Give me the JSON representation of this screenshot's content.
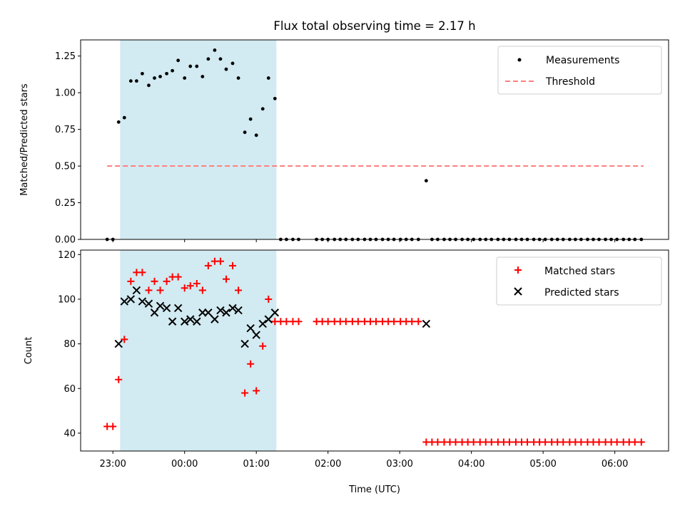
{
  "chart_data": {
    "type": "scatter",
    "title": "Flux total observing time = 2.17 h",
    "xlabel": "Time (UTC)",
    "x_unit": "hours since 00:00 UTC",
    "xlim": [
      -1.45,
      6.75
    ],
    "xticks": [
      -1,
      0,
      1,
      2,
      3,
      4,
      5,
      6
    ],
    "xtick_labels": [
      "23:00",
      "00:00",
      "01:00",
      "02:00",
      "03:00",
      "04:00",
      "05:00",
      "06:00"
    ],
    "highlight_span": [
      -0.9,
      1.28
    ],
    "colors": {
      "span": "#add8e6",
      "measurements": "#000000",
      "threshold": "#ff7f7f",
      "matched": "#ff0000",
      "predicted": "#000000"
    },
    "panels": [
      {
        "id": "ratio",
        "ylabel": "Matched/Predicted stars",
        "ylim": [
          0,
          1.36
        ],
        "yticks": [
          0,
          0.25,
          0.5,
          0.75,
          1.0,
          1.25
        ],
        "ytick_labels": [
          "0.00",
          "0.25",
          "0.50",
          "0.75",
          "1.00",
          "1.25"
        ],
        "legend": [
          {
            "label": "Measurements",
            "marker": "dot"
          },
          {
            "label": "Threshold",
            "marker": "dashed-line"
          }
        ],
        "threshold": {
          "y": 0.5,
          "x": [
            -1.08,
            6.4
          ]
        },
        "series": [
          {
            "name": "Measurements",
            "x": [
              -1.08,
              -1.0,
              -0.92,
              -0.84,
              -0.75,
              -0.67,
              -0.59,
              -0.5,
              -0.42,
              -0.34,
              -0.25,
              -0.17,
              -0.09,
              0.0,
              0.08,
              0.17,
              0.25,
              0.33,
              0.42,
              0.5,
              0.58,
              0.67,
              0.75,
              0.84,
              0.92,
              1.0,
              1.09,
              1.17,
              1.26,
              1.34,
              1.42,
              1.51,
              1.59,
              1.84,
              1.92,
              2.0,
              2.09,
              2.17,
              2.25,
              2.34,
              2.42,
              2.51,
              2.59,
              2.67,
              2.76,
              2.84,
              2.92,
              3.01,
              3.09,
              3.17,
              3.26,
              3.37,
              3.45,
              3.53,
              3.62,
              3.7,
              3.78,
              3.87,
              3.95,
              4.03,
              4.12,
              4.2,
              4.28,
              4.37,
              4.45,
              4.53,
              4.62,
              4.7,
              4.78,
              4.87,
              4.95,
              5.03,
              5.12,
              5.2,
              5.28,
              5.37,
              5.45,
              5.53,
              5.62,
              5.7,
              5.78,
              5.87,
              5.95,
              6.03,
              6.12,
              6.2,
              6.28,
              6.37
            ],
            "y": [
              0,
              0,
              0.8,
              0.83,
              1.08,
              1.08,
              1.13,
              1.05,
              1.1,
              1.11,
              1.13,
              1.15,
              1.22,
              1.1,
              1.18,
              1.18,
              1.11,
              1.23,
              1.29,
              1.23,
              1.16,
              1.2,
              1.1,
              0.73,
              0.82,
              0.71,
              0.89,
              1.1,
              0.96,
              0,
              0,
              0,
              0,
              0,
              0,
              0,
              0,
              0,
              0,
              0,
              0,
              0,
              0,
              0,
              0,
              0,
              0,
              0,
              0,
              0,
              0,
              0.4,
              0,
              0,
              0,
              0,
              0,
              0,
              0,
              0,
              0,
              0,
              0,
              0,
              0,
              0,
              0,
              0,
              0,
              0,
              0,
              0,
              0,
              0,
              0,
              0,
              0,
              0,
              0,
              0,
              0,
              0,
              0,
              0,
              0,
              0,
              0,
              0
            ]
          }
        ]
      },
      {
        "id": "count",
        "ylabel": "Count",
        "ylim": [
          32,
          122
        ],
        "yticks": [
          40,
          60,
          80,
          100,
          120
        ],
        "ytick_labels": [
          "40",
          "60",
          "80",
          "100",
          "120"
        ],
        "legend": [
          {
            "label": "Matched stars",
            "marker": "plus"
          },
          {
            "label": "Predicted stars",
            "marker": "x"
          }
        ],
        "series": [
          {
            "name": "Matched stars",
            "marker": "plus",
            "x": [
              -1.08,
              -1.0,
              -0.92,
              -0.84,
              -0.75,
              -0.67,
              -0.59,
              -0.5,
              -0.42,
              -0.34,
              -0.25,
              -0.17,
              -0.09,
              0.0,
              0.08,
              0.17,
              0.25,
              0.33,
              0.42,
              0.5,
              0.58,
              0.67,
              0.75,
              0.84,
              0.92,
              1.0,
              1.09,
              1.17,
              1.26,
              1.34,
              1.42,
              1.51,
              1.59,
              1.84,
              1.92,
              2.0,
              2.09,
              2.17,
              2.25,
              2.34,
              2.42,
              2.51,
              2.59,
              2.67,
              2.76,
              2.84,
              2.92,
              3.01,
              3.09,
              3.17,
              3.26,
              3.37,
              3.45,
              3.53,
              3.62,
              3.7,
              3.78,
              3.87,
              3.95,
              4.03,
              4.12,
              4.2,
              4.28,
              4.37,
              4.45,
              4.53,
              4.62,
              4.7,
              4.78,
              4.87,
              4.95,
              5.03,
              5.12,
              5.2,
              5.28,
              5.37,
              5.45,
              5.53,
              5.62,
              5.7,
              5.78,
              5.87,
              5.95,
              6.03,
              6.12,
              6.2,
              6.28,
              6.37
            ],
            "y": [
              43,
              43,
              64,
              82,
              108,
              112,
              112,
              104,
              108,
              104,
              108,
              110,
              110,
              105,
              106,
              107,
              104,
              115,
              117,
              117,
              109,
              115,
              104,
              58,
              71,
              59,
              79,
              100,
              90,
              90,
              90,
              90,
              90,
              90,
              90,
              90,
              90,
              90,
              90,
              90,
              90,
              90,
              90,
              90,
              90,
              90,
              90,
              90,
              90,
              90,
              90,
              36,
              36,
              36,
              36,
              36,
              36,
              36,
              36,
              36,
              36,
              36,
              36,
              36,
              36,
              36,
              36,
              36,
              36,
              36,
              36,
              36,
              36,
              36,
              36,
              36,
              36,
              36,
              36,
              36,
              36,
              36,
              36,
              36,
              36,
              36,
              36,
              36
            ]
          },
          {
            "name": "Predicted stars",
            "marker": "x",
            "x": [
              -0.92,
              -0.84,
              -0.75,
              -0.67,
              -0.59,
              -0.5,
              -0.42,
              -0.34,
              -0.25,
              -0.17,
              -0.09,
              0.0,
              0.08,
              0.17,
              0.25,
              0.33,
              0.42,
              0.5,
              0.58,
              0.67,
              0.75,
              0.84,
              0.92,
              1.0,
              1.09,
              1.17,
              1.26,
              3.37
            ],
            "y": [
              80,
              99,
              100,
              104,
              99,
              98,
              94,
              97,
              96,
              90,
              96,
              90,
              91,
              90,
              94,
              94,
              91,
              95,
              94,
              96,
              95,
              80,
              87,
              84,
              89,
              91,
              94,
              89
            ]
          }
        ]
      }
    ]
  }
}
